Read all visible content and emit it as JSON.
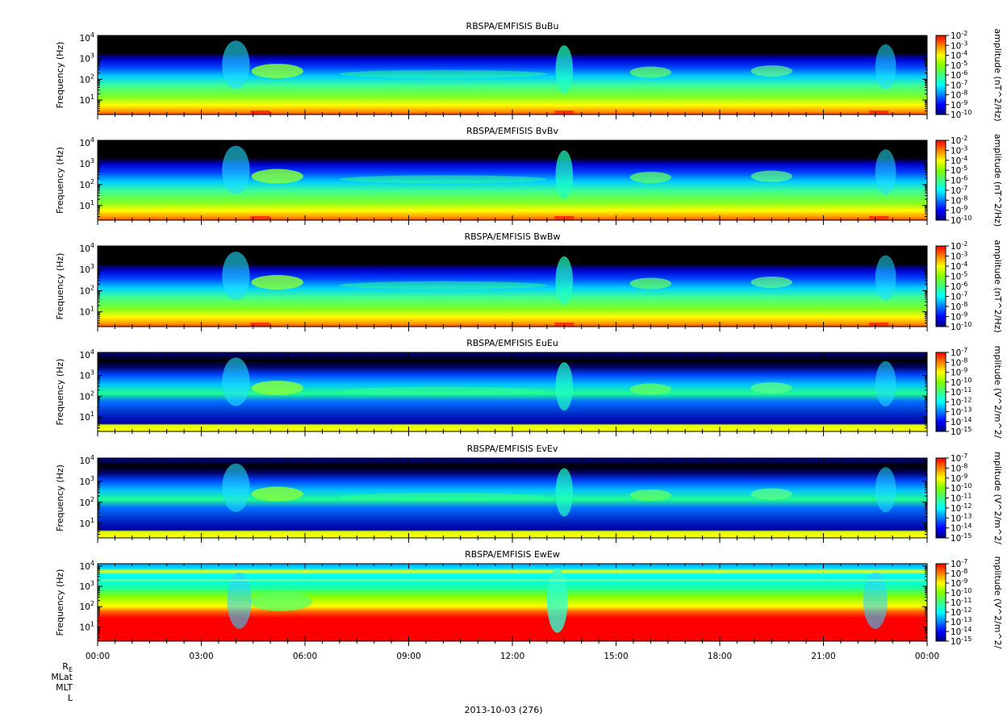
{
  "chart_data": [
    {
      "type": "heatmap",
      "title": "RBSPA/EMFISIS  BuBu",
      "ylabel": "Frequency (Hz)",
      "zlabel": "amplitude (nT^2/Hz)",
      "yscale": "log",
      "ylim": [
        2,
        13000
      ],
      "yticks": [
        {
          "exp": "1",
          "value": 10
        },
        {
          "exp": "2",
          "value": 100
        },
        {
          "exp": "3",
          "value": 1000
        },
        {
          "exp": "4",
          "value": 10000
        }
      ],
      "colorbar": {
        "min_exp": -10,
        "max_exp": -2,
        "labels": [
          "-2",
          "-3",
          "-4",
          "-5",
          "-6",
          "-7",
          "-8",
          "-9",
          "-10"
        ]
      },
      "kind": "b"
    },
    {
      "type": "heatmap",
      "title": "RBSPA/EMFISIS  BvBv",
      "ylabel": "Frequency (Hz)",
      "zlabel": "amplitude (nT^2/Hz)",
      "yscale": "log",
      "ylim": [
        2,
        13000
      ],
      "yticks": [
        {
          "exp": "1",
          "value": 10
        },
        {
          "exp": "2",
          "value": 100
        },
        {
          "exp": "3",
          "value": 1000
        },
        {
          "exp": "4",
          "value": 10000
        }
      ],
      "colorbar": {
        "min_exp": -10,
        "max_exp": -2,
        "labels": [
          "-2",
          "-3",
          "-4",
          "-5",
          "-6",
          "-7",
          "-8",
          "-9",
          "-10"
        ]
      },
      "kind": "b"
    },
    {
      "type": "heatmap",
      "title": "RBSPA/EMFISIS  BwBw",
      "ylabel": "Frequency (Hz)",
      "zlabel": "amplitude (nT^2/Hz)",
      "yscale": "log",
      "ylim": [
        2,
        13000
      ],
      "yticks": [
        {
          "exp": "1",
          "value": 10
        },
        {
          "exp": "2",
          "value": 100
        },
        {
          "exp": "3",
          "value": 1000
        },
        {
          "exp": "4",
          "value": 10000
        }
      ],
      "colorbar": {
        "min_exp": -10,
        "max_exp": -2,
        "labels": [
          "-2",
          "-3",
          "-4",
          "-5",
          "-6",
          "-7",
          "-8",
          "-9",
          "-10"
        ]
      },
      "kind": "b"
    },
    {
      "type": "heatmap",
      "title": "RBSPA/EMFISIS  EuEu",
      "ylabel": "Frequency (Hz)",
      "zlabel": "mplitude (V^2/m^2/",
      "yscale": "log",
      "ylim": [
        2,
        13000
      ],
      "yticks": [
        {
          "exp": "1",
          "value": 10
        },
        {
          "exp": "2",
          "value": 100
        },
        {
          "exp": "3",
          "value": 1000
        },
        {
          "exp": "4",
          "value": 10000
        }
      ],
      "colorbar": {
        "min_exp": -15,
        "max_exp": -7,
        "labels": [
          "-7",
          "-8",
          "-9",
          "-10",
          "-11",
          "-12",
          "-13",
          "-14",
          "-15"
        ]
      },
      "kind": "e"
    },
    {
      "type": "heatmap",
      "title": "RBSPA/EMFISIS  EvEv",
      "ylabel": "Frequency (Hz)",
      "zlabel": "mplitude (V^2/m^2/",
      "yscale": "log",
      "ylim": [
        2,
        13000
      ],
      "yticks": [
        {
          "exp": "1",
          "value": 10
        },
        {
          "exp": "2",
          "value": 100
        },
        {
          "exp": "3",
          "value": 1000
        },
        {
          "exp": "4",
          "value": 10000
        }
      ],
      "colorbar": {
        "min_exp": -15,
        "max_exp": -7,
        "labels": [
          "-7",
          "-8",
          "-9",
          "-10",
          "-11",
          "-12",
          "-13",
          "-14",
          "-15"
        ]
      },
      "kind": "e"
    },
    {
      "type": "heatmap",
      "title": "RBSPA/EMFISIS  EwEw",
      "ylabel": "Frequency (Hz)",
      "zlabel": "mplitude (V^2/m^2/",
      "yscale": "log",
      "ylim": [
        2,
        13000
      ],
      "yticks": [
        {
          "exp": "1",
          "value": 10
        },
        {
          "exp": "2",
          "value": 100
        },
        {
          "exp": "3",
          "value": 1000
        },
        {
          "exp": "4",
          "value": 10000
        }
      ],
      "colorbar": {
        "min_exp": -15,
        "max_exp": -7,
        "labels": [
          "-7",
          "-8",
          "-9",
          "-10",
          "-11",
          "-12",
          "-13",
          "-14",
          "-15"
        ]
      },
      "kind": "w"
    }
  ],
  "x_axis": {
    "tick_labels": [
      "00:00",
      "03:00",
      "06:00",
      "09:00",
      "12:00",
      "15:00",
      "18:00",
      "21:00",
      "00:00"
    ],
    "tick_hours": [
      0,
      3,
      6,
      9,
      12,
      15,
      18,
      21,
      24
    ],
    "minor_per_major": 6
  },
  "ephemeris_labels": {
    "re_main": "R",
    "re_sub": "E",
    "mlat": "MLat",
    "mlt": "MLT",
    "l": "L"
  },
  "date_label": "2013-10-03 (276)",
  "base_label": "10",
  "colors": {
    "background": "#000000",
    "scale": [
      "#00007f",
      "#0000ff",
      "#0080ff",
      "#00ffff",
      "#40ff80",
      "#80ff00",
      "#ffff00",
      "#ff8000",
      "#ff0000"
    ]
  }
}
